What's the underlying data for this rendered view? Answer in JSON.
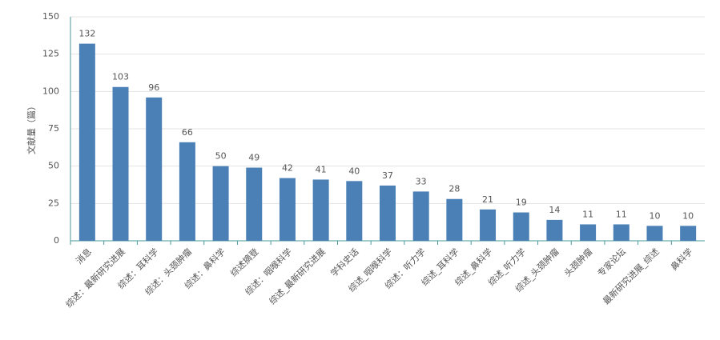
{
  "chart_data": {
    "type": "bar",
    "y_label": "文献量（篇）",
    "categories": [
      "消息",
      "综述：最新研究进展",
      "综述：耳科学",
      "综述：头颈肿瘤",
      "综述：鼻科学",
      "综述摘登",
      "综述：咽喉科学",
      "综述_最新研究进展",
      "学科史话",
      "综述_咽喉科学",
      "综述：听力学",
      "综述_耳科学",
      "综述_鼻科学",
      "综述_听力学",
      "综述_头颈肿瘤",
      "头颈肿瘤",
      "专家论坛",
      "最新研究进展_综述",
      "鼻科学"
    ],
    "values": [
      132,
      103,
      96,
      66,
      50,
      49,
      42,
      41,
      40,
      37,
      33,
      28,
      21,
      19,
      14,
      11,
      11,
      10,
      10
    ],
    "color": "#4a80b6",
    "ylim": [
      0,
      150
    ],
    "yticks": [
      0,
      25,
      50,
      75,
      100,
      125,
      150
    ],
    "grid": true
  }
}
